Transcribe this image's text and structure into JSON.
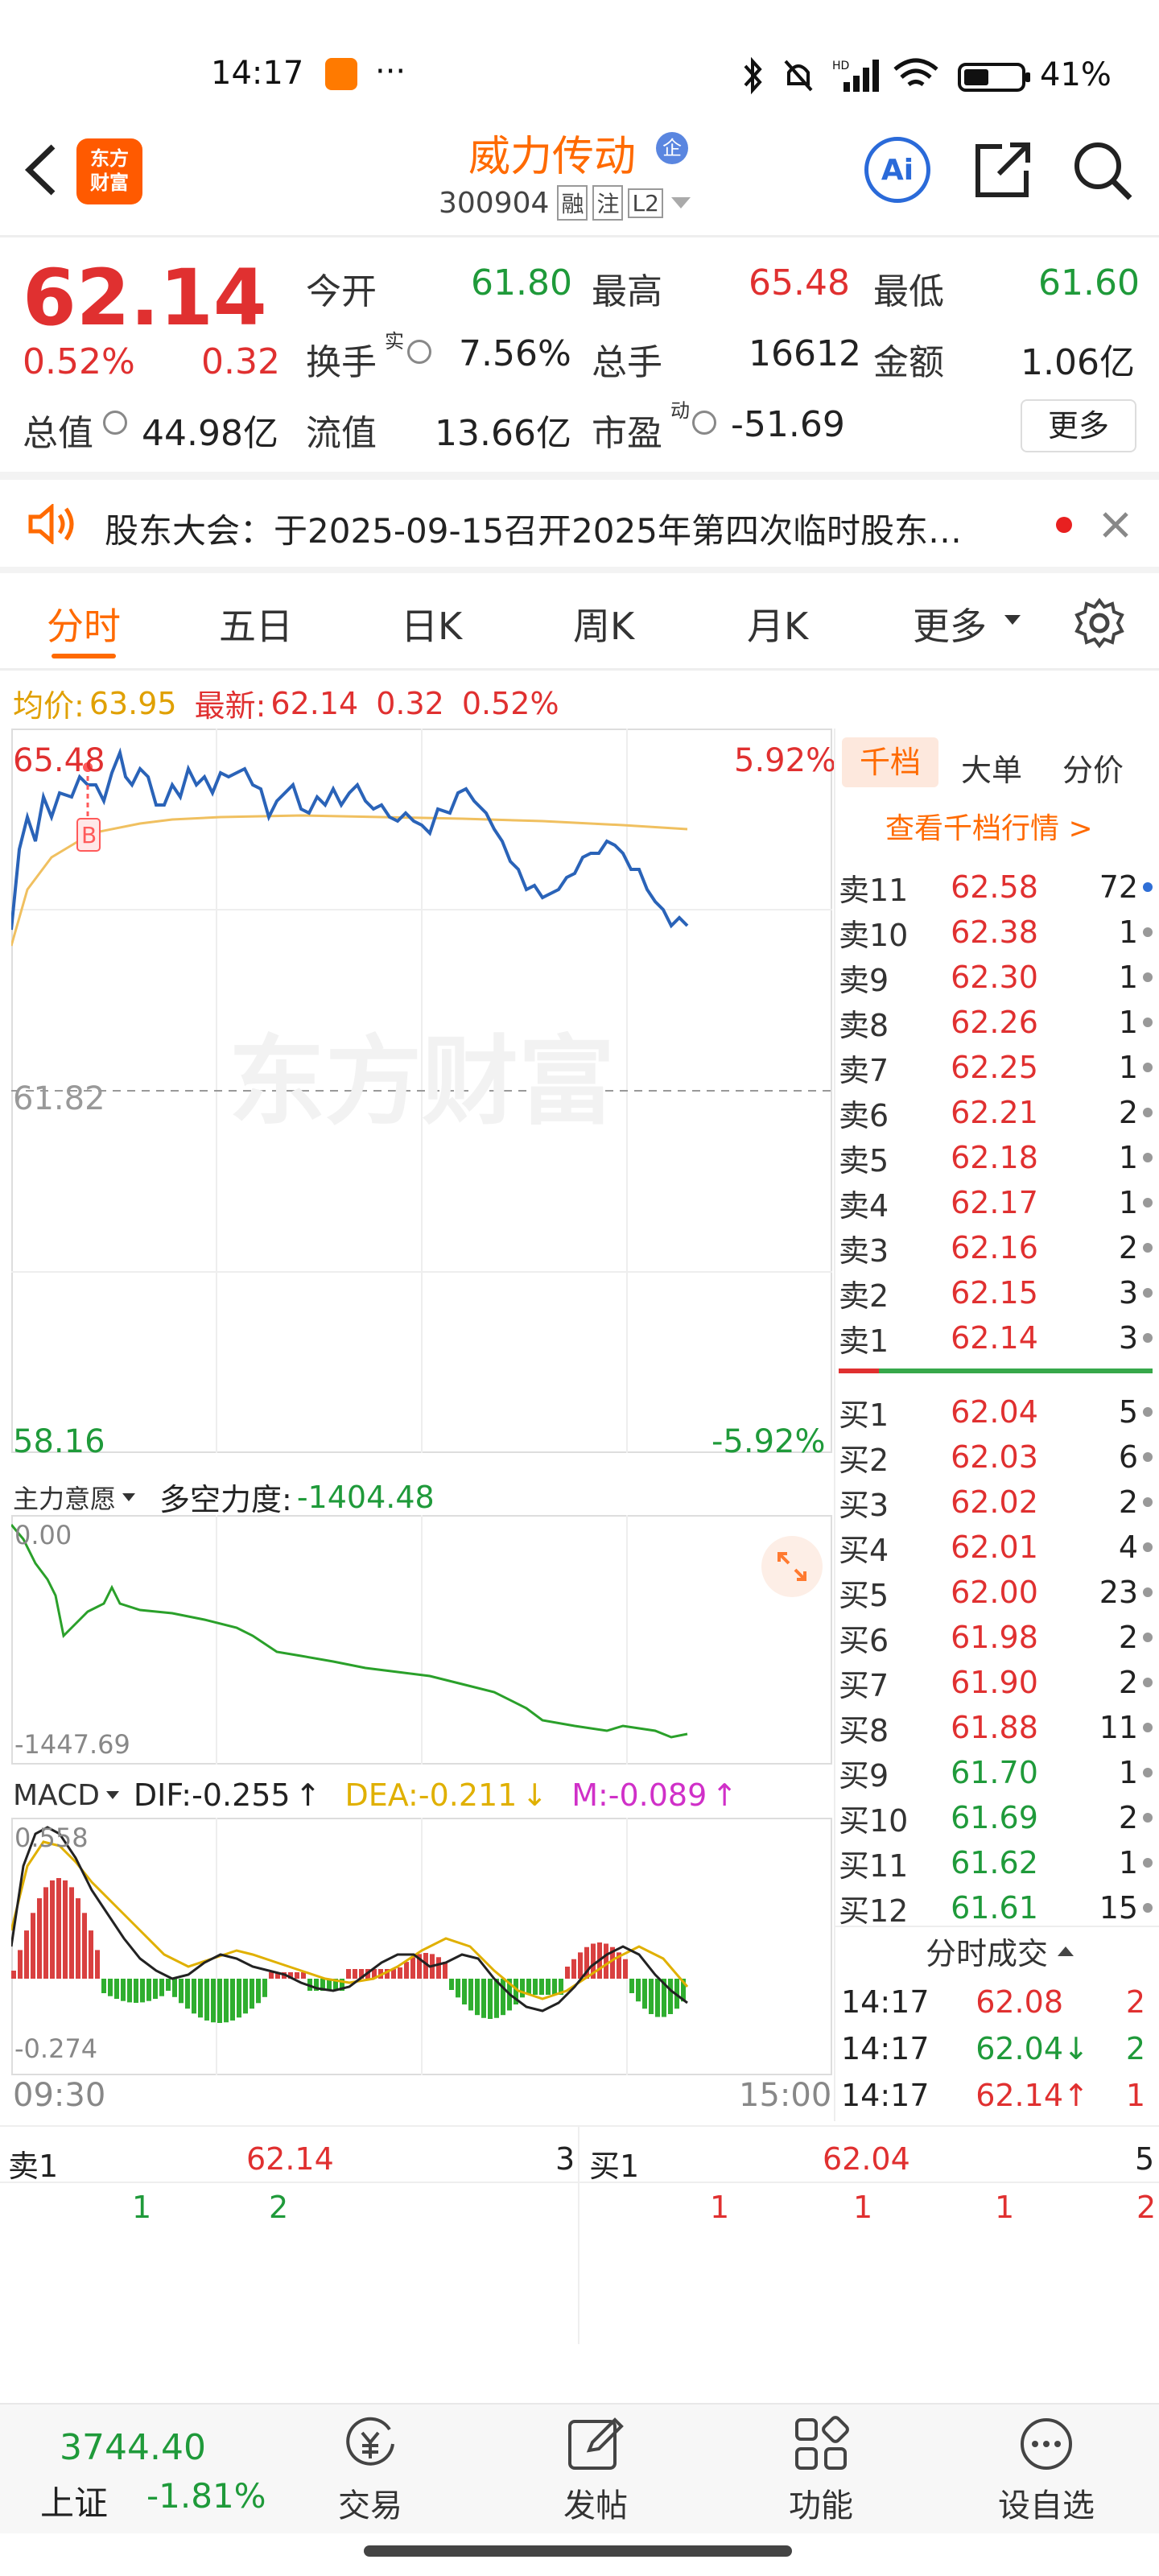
{
  "status_bar": {
    "time": "14:17",
    "ellipsis": "···",
    "battery": "41%"
  },
  "header": {
    "back": "<",
    "logo_text": "东方\n财富",
    "stock_name": "威力传动",
    "badge": "企",
    "code": "300904",
    "tags": [
      "融",
      "注",
      "L2"
    ],
    "ai_label": "Ai"
  },
  "quote": {
    "price": "62.14",
    "change_pct": "0.52%",
    "change": "0.32",
    "fields": [
      {
        "label": "今开",
        "value": "61.80",
        "color": "green"
      },
      {
        "label": "最高",
        "value": "65.48",
        "color": "red"
      },
      {
        "label": "最低",
        "value": "61.60",
        "color": "green"
      },
      {
        "label": "换手",
        "sup": "实",
        "value": "7.56%",
        "color": "black"
      },
      {
        "label": "总手",
        "value": "16612",
        "color": "black"
      },
      {
        "label": "金额",
        "value": "1.06亿",
        "color": "black"
      },
      {
        "label": "总值",
        "value": "44.98亿",
        "color": "black"
      },
      {
        "label": "流值",
        "value": "13.66亿",
        "color": "black"
      },
      {
        "label": "市盈",
        "sup": "动",
        "value": "-51.69",
        "color": "black"
      }
    ],
    "more_button": "更多"
  },
  "announcement": {
    "text": "股东大会：于2025-09-15召开2025年第四次临时股东…"
  },
  "chart_tabs": [
    "分时",
    "五日",
    "日K",
    "周K",
    "月K",
    "更多"
  ],
  "info_line": {
    "avg_label": "均价:",
    "avg_value": "63.95",
    "latest_label": "最新:",
    "latest_value": "62.14",
    "change": "0.32",
    "change_pct": "0.52%"
  },
  "chart_labels": {
    "y_max": "65.48",
    "y_mid": "61.82",
    "y_min": "58.16",
    "pct_max": "5.92%",
    "pct_min": "-5.92%",
    "watermark": "东方财富",
    "marker": "B",
    "t_start": "09:30",
    "t_end": "15:00"
  },
  "flow_panel": {
    "selector": "主力意愿",
    "label": "多空力度:",
    "value": "-1404.48",
    "top": "0.00",
    "bottom": "-1447.69"
  },
  "macd_panel": {
    "selector": "MACD",
    "dif": "DIF:-0.255",
    "dif_arrow": "↑",
    "dea": "DEA:-0.211",
    "dea_arrow": "↓",
    "m": "M:-0.089",
    "m_arrow": "↑",
    "top": "0.558",
    "bottom": "-0.274"
  },
  "depth_tabs": [
    "千档",
    "大单",
    "分价"
  ],
  "depth_link": "查看千档行情 >",
  "asks": [
    {
      "label": "卖11",
      "price": "62.58",
      "vol": "72"
    },
    {
      "label": "卖10",
      "price": "62.38",
      "vol": "1"
    },
    {
      "label": "卖9",
      "price": "62.30",
      "vol": "1"
    },
    {
      "label": "卖8",
      "price": "62.26",
      "vol": "1"
    },
    {
      "label": "卖7",
      "price": "62.25",
      "vol": "1"
    },
    {
      "label": "卖6",
      "price": "62.21",
      "vol": "2"
    },
    {
      "label": "卖5",
      "price": "62.18",
      "vol": "1"
    },
    {
      "label": "卖4",
      "price": "62.17",
      "vol": "1"
    },
    {
      "label": "卖3",
      "price": "62.16",
      "vol": "2"
    },
    {
      "label": "卖2",
      "price": "62.15",
      "vol": "3"
    },
    {
      "label": "卖1",
      "price": "62.14",
      "vol": "3"
    }
  ],
  "bids": [
    {
      "label": "买1",
      "price": "62.04",
      "vol": "5"
    },
    {
      "label": "买2",
      "price": "62.03",
      "vol": "6"
    },
    {
      "label": "买3",
      "price": "62.02",
      "vol": "2"
    },
    {
      "label": "买4",
      "price": "62.01",
      "vol": "4"
    },
    {
      "label": "买5",
      "price": "62.00",
      "vol": "23"
    },
    {
      "label": "买6",
      "price": "61.98",
      "vol": "2"
    },
    {
      "label": "买7",
      "price": "61.90",
      "vol": "2"
    },
    {
      "label": "买8",
      "price": "61.88",
      "vol": "11"
    },
    {
      "label": "买9",
      "price": "61.70",
      "vol": "1"
    },
    {
      "label": "买10",
      "price": "61.69",
      "vol": "2"
    },
    {
      "label": "买11",
      "price": "61.62",
      "vol": "1"
    },
    {
      "label": "买12",
      "price": "61.61",
      "vol": "15"
    }
  ],
  "trades_header": "分时成交",
  "trades": [
    {
      "time": "14:17",
      "price": "62.08",
      "arrow": "",
      "vol": "2",
      "color": "red"
    },
    {
      "time": "14:17",
      "price": "62.04",
      "arrow": "↓",
      "vol": "2",
      "color": "green"
    },
    {
      "time": "14:17",
      "price": "62.14",
      "arrow": "↑",
      "vol": "1",
      "color": "red"
    }
  ],
  "queue": {
    "sell_label": "卖1",
    "sell_price": "62.14",
    "sell_vol": "3",
    "buy_label": "买1",
    "buy_price": "62.04",
    "buy_vol": "5",
    "sell_orders": [
      "1",
      "2"
    ],
    "buy_orders": [
      "1",
      "1",
      "1",
      "2"
    ]
  },
  "bottom_bar": {
    "index_value": "3744.40",
    "index_name": "上证",
    "index_change": "-1.81%",
    "items": [
      "交易",
      "发帖",
      "功能",
      "设自选"
    ]
  },
  "colors": {
    "red": "#e03030",
    "green": "#1f9a3a",
    "accent": "#ff6a00",
    "blue": "#2f6fd6"
  }
}
